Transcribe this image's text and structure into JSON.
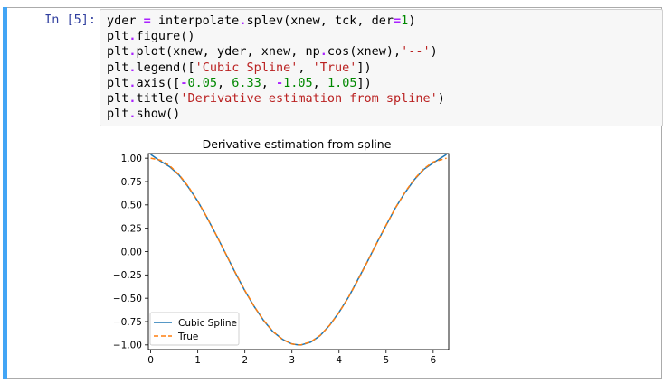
{
  "cell": {
    "prompt": "In [5]:",
    "code_lines": [
      [
        {
          "t": "yder ",
          "c": ""
        },
        {
          "t": "=",
          "c": "op"
        },
        {
          "t": " interpolate",
          "c": ""
        },
        {
          "t": ".",
          "c": "op"
        },
        {
          "t": "splev(xnew, tck, der",
          "c": ""
        },
        {
          "t": "=",
          "c": "op"
        },
        {
          "t": "1",
          "c": "num"
        },
        {
          "t": ")",
          "c": ""
        }
      ],
      [
        {
          "t": "plt",
          "c": ""
        },
        {
          "t": ".",
          "c": "op"
        },
        {
          "t": "figure()",
          "c": ""
        }
      ],
      [
        {
          "t": "plt",
          "c": ""
        },
        {
          "t": ".",
          "c": "op"
        },
        {
          "t": "plot(xnew, yder, xnew, np",
          "c": ""
        },
        {
          "t": ".",
          "c": "op"
        },
        {
          "t": "cos(xnew),",
          "c": ""
        },
        {
          "t": "'--'",
          "c": "str"
        },
        {
          "t": ")",
          "c": ""
        }
      ],
      [
        {
          "t": "plt",
          "c": ""
        },
        {
          "t": ".",
          "c": "op"
        },
        {
          "t": "legend([",
          "c": ""
        },
        {
          "t": "'Cubic Spline'",
          "c": "str"
        },
        {
          "t": ", ",
          "c": ""
        },
        {
          "t": "'True'",
          "c": "str"
        },
        {
          "t": "])",
          "c": ""
        }
      ],
      [
        {
          "t": "plt",
          "c": ""
        },
        {
          "t": ".",
          "c": "op"
        },
        {
          "t": "axis([",
          "c": ""
        },
        {
          "t": "-",
          "c": "op"
        },
        {
          "t": "0.05",
          "c": "num"
        },
        {
          "t": ", ",
          "c": ""
        },
        {
          "t": "6.33",
          "c": "num"
        },
        {
          "t": ", ",
          "c": ""
        },
        {
          "t": "-",
          "c": "op"
        },
        {
          "t": "1.05",
          "c": "num"
        },
        {
          "t": ", ",
          "c": ""
        },
        {
          "t": "1.05",
          "c": "num"
        },
        {
          "t": "])",
          "c": ""
        }
      ],
      [
        {
          "t": "plt",
          "c": ""
        },
        {
          "t": ".",
          "c": "op"
        },
        {
          "t": "title(",
          "c": ""
        },
        {
          "t": "'Derivative estimation from spline'",
          "c": "str"
        },
        {
          "t": ")",
          "c": ""
        }
      ],
      [
        {
          "t": "plt",
          "c": ""
        },
        {
          "t": ".",
          "c": "op"
        },
        {
          "t": "show()",
          "c": ""
        }
      ]
    ]
  },
  "colors": {
    "series_1": "#1f77b4",
    "series_2": "#ff7f0e",
    "prompt": "#303f9f",
    "cell_selected_bar": "#42a5f5"
  },
  "chart_data": {
    "type": "line",
    "title": "Derivative estimation from spline",
    "xlabel": "",
    "ylabel": "",
    "xlim": [
      -0.05,
      6.33
    ],
    "ylim": [
      -1.05,
      1.05
    ],
    "xticks": [
      0,
      1,
      2,
      3,
      4,
      5,
      6
    ],
    "xtick_labels": [
      "0",
      "1",
      "2",
      "3",
      "4",
      "5",
      "6"
    ],
    "yticks": [
      1.0,
      0.75,
      0.5,
      0.25,
      0.0,
      -0.25,
      -0.5,
      -0.75,
      -1.0
    ],
    "ytick_labels": [
      "1.00",
      "0.75",
      "0.50",
      "0.25",
      "0.00",
      "−0.25",
      "−0.50",
      "−0.75",
      "−1.00"
    ],
    "legend_position": "lower-left",
    "grid": false,
    "series": [
      {
        "name": "Cubic Spline",
        "style": "solid",
        "x": [
          0,
          0.2,
          0.4,
          0.6,
          0.8,
          1.0,
          1.2,
          1.4,
          1.6,
          1.8,
          2.0,
          2.2,
          2.4,
          2.6,
          2.8,
          3.0,
          3.1416,
          3.2,
          3.4,
          3.6,
          3.8,
          4.0,
          4.2,
          4.4,
          4.6,
          4.8,
          5.0,
          5.2,
          5.4,
          5.6,
          5.8,
          6.0,
          6.2832
        ],
        "y": [
          1.04,
          0.97,
          0.91,
          0.82,
          0.69,
          0.54,
          0.36,
          0.17,
          -0.03,
          -0.23,
          -0.42,
          -0.59,
          -0.74,
          -0.86,
          -0.94,
          -0.99,
          -1.0,
          -1.0,
          -0.97,
          -0.9,
          -0.79,
          -0.65,
          -0.49,
          -0.3,
          -0.11,
          0.09,
          0.28,
          0.47,
          0.63,
          0.77,
          0.88,
          0.95,
          1.04
        ]
      },
      {
        "name": "True",
        "style": "dashed",
        "x": [
          0,
          0.2,
          0.4,
          0.6,
          0.8,
          1.0,
          1.2,
          1.4,
          1.6,
          1.8,
          2.0,
          2.2,
          2.4,
          2.6,
          2.8,
          3.0,
          3.1416,
          3.2,
          3.4,
          3.6,
          3.8,
          4.0,
          4.2,
          4.4,
          4.6,
          4.8,
          5.0,
          5.2,
          5.4,
          5.6,
          5.8,
          6.0,
          6.2832
        ],
        "y": [
          1.0,
          0.98,
          0.921,
          0.825,
          0.697,
          0.54,
          0.362,
          0.17,
          -0.029,
          -0.227,
          -0.416,
          -0.589,
          -0.737,
          -0.857,
          -0.942,
          -0.99,
          -1.0,
          -0.998,
          -0.967,
          -0.897,
          -0.791,
          -0.654,
          -0.49,
          -0.307,
          -0.112,
          0.087,
          0.284,
          0.469,
          0.635,
          0.776,
          0.886,
          0.96,
          1.0
        ]
      }
    ]
  }
}
